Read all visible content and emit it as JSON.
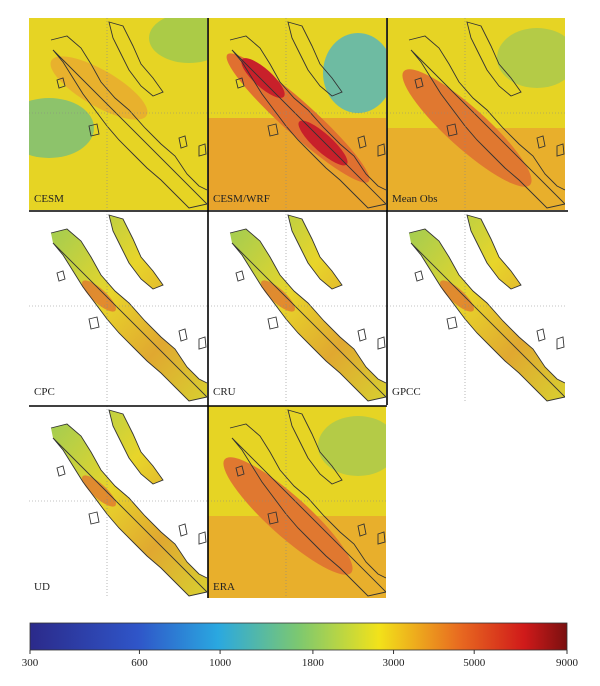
{
  "panels": [
    {
      "label": "CESM"
    },
    {
      "label": "CESM/WRF"
    },
    {
      "label": "Mean Obs"
    },
    {
      "label": "CPC"
    },
    {
      "label": "CRU"
    },
    {
      "label": "GPCC"
    },
    {
      "label": "UD"
    },
    {
      "label": "ERA"
    }
  ],
  "colorbar": {
    "scale": "log",
    "lim": [
      300,
      9000
    ],
    "ticks": [
      300,
      600,
      1000,
      1800,
      3000,
      5000,
      9000
    ]
  }
}
